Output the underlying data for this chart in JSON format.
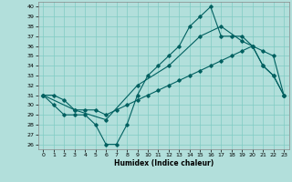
{
  "title": "",
  "xlabel": "Humidex (Indice chaleur)",
  "ylabel": "",
  "bg_color": "#b2dfdb",
  "grid_color": "#80cbc4",
  "line_color": "#006060",
  "xlim": [
    -0.5,
    23.5
  ],
  "ylim": [
    25.5,
    40.5
  ],
  "yticks": [
    26,
    27,
    28,
    29,
    30,
    31,
    32,
    33,
    34,
    35,
    36,
    37,
    38,
    39,
    40
  ],
  "xticks": [
    0,
    1,
    2,
    3,
    4,
    5,
    6,
    7,
    8,
    9,
    10,
    11,
    12,
    13,
    14,
    15,
    16,
    17,
    18,
    19,
    20,
    21,
    22,
    23
  ],
  "line1_x": [
    0,
    1,
    2,
    3,
    4,
    5,
    6,
    7,
    8,
    9,
    10,
    11,
    12,
    13,
    14,
    15,
    16,
    17,
    18,
    19,
    20,
    21,
    22,
    23
  ],
  "line1_y": [
    31,
    30,
    29,
    29,
    29,
    28,
    26,
    26,
    28,
    31,
    33,
    34,
    35,
    36,
    38,
    39,
    40,
    37,
    37,
    37,
    36,
    34,
    33,
    31
  ],
  "line2_x": [
    0,
    3,
    6,
    9,
    12,
    15,
    17,
    19,
    20,
    21,
    22,
    23
  ],
  "line2_y": [
    31,
    29.5,
    28.5,
    32,
    34,
    37,
    38,
    36.5,
    36,
    34,
    33,
    31
  ],
  "line3_x": [
    0,
    1,
    2,
    3,
    4,
    5,
    6,
    7,
    8,
    9,
    10,
    11,
    12,
    13,
    14,
    15,
    16,
    17,
    18,
    19,
    20,
    21,
    22,
    23
  ],
  "line3_y": [
    31,
    31,
    30.5,
    29.5,
    29.5,
    29.5,
    29,
    29.5,
    30,
    30.5,
    31,
    31.5,
    32,
    32.5,
    33,
    33.5,
    34,
    34.5,
    35,
    35.5,
    36,
    35.5,
    35,
    31
  ]
}
